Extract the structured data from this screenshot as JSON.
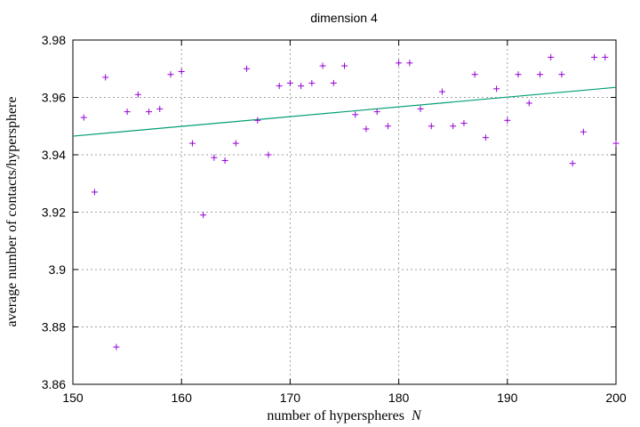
{
  "chart_data": {
    "type": "scatter",
    "title": "dimension 4",
    "xlabel": "number of hyperspheres",
    "xlabel_var": "N",
    "ylabel": "average number of contacts/hypersphere",
    "xlim": [
      150,
      200
    ],
    "ylim": [
      3.86,
      3.98
    ],
    "xticks": [
      "150",
      "160",
      "170",
      "180",
      "190",
      "200"
    ],
    "yticks": [
      "3.86",
      "3.88",
      "3.9",
      "3.92",
      "3.94",
      "3.96",
      "3.98"
    ],
    "grid": true,
    "marker_color": "#9400d3",
    "fit_color": "#009e73",
    "points": {
      "x": [
        151,
        152,
        153,
        154,
        155,
        156,
        157,
        158,
        159,
        160,
        161,
        162,
        163,
        164,
        165,
        166,
        167,
        168,
        169,
        170,
        171,
        172,
        173,
        174,
        175,
        176,
        177,
        178,
        179,
        180,
        181,
        182,
        183,
        184,
        185,
        186,
        187,
        188,
        189,
        190,
        191,
        192,
        193,
        194,
        195,
        196,
        197,
        198,
        199,
        200
      ],
      "y": [
        3.953,
        3.927,
        3.967,
        3.873,
        3.955,
        3.961,
        3.955,
        3.956,
        3.968,
        3.969,
        3.944,
        3.919,
        3.939,
        3.938,
        3.944,
        3.97,
        3.952,
        3.94,
        3.964,
        3.965,
        3.964,
        3.965,
        3.971,
        3.965,
        3.971,
        3.954,
        3.949,
        3.955,
        3.95,
        3.972,
        3.972,
        3.956,
        3.95,
        3.962,
        3.95,
        3.951,
        3.968,
        3.946,
        3.963,
        3.952,
        3.968,
        3.958,
        3.968,
        3.974,
        3.968,
        3.937,
        3.948,
        3.974,
        3.974,
        3.944
      ]
    },
    "fit_line": {
      "x": [
        150,
        200
      ],
      "y": [
        3.9465,
        3.9635
      ]
    }
  }
}
